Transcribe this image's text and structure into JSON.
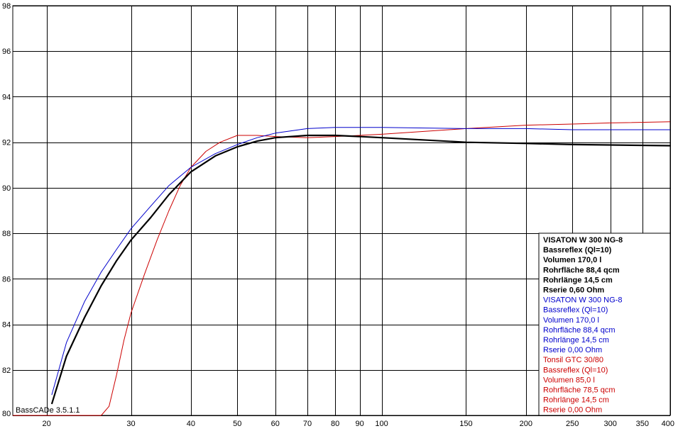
{
  "chart_data": {
    "type": "line",
    "title": "",
    "xlabel": "",
    "ylabel": "",
    "x_scale": "log",
    "xlim": [
      17,
      400
    ],
    "ylim": [
      80,
      98
    ],
    "grid": true,
    "x_ticks": [
      20,
      30,
      40,
      50,
      60,
      70,
      80,
      90,
      100,
      150,
      200,
      250,
      300,
      350,
      400
    ],
    "y_ticks": [
      80,
      82,
      84,
      86,
      88,
      90,
      92,
      94,
      96,
      98
    ],
    "watermark": "BassCADe 3.5.1.1",
    "series": [
      {
        "name": "VISATON W 300 NG-8",
        "color": "#000000",
        "bold": true,
        "x": [
          20.5,
          22,
          24,
          26,
          28,
          30,
          33,
          36,
          40,
          45,
          50,
          55,
          60,
          70,
          80,
          90,
          100,
          150,
          200,
          250,
          300,
          400
        ],
        "y": [
          80.5,
          82.6,
          84.3,
          85.7,
          86.8,
          87.7,
          88.7,
          89.7,
          90.7,
          91.4,
          91.8,
          92.05,
          92.2,
          92.3,
          92.3,
          92.25,
          92.2,
          92.0,
          91.95,
          91.9,
          91.88,
          91.85
        ]
      },
      {
        "name": "VISATON W 300 NG-8",
        "color": "#0000cc",
        "bold": false,
        "x": [
          20.5,
          22,
          24,
          26,
          28,
          30,
          33,
          36,
          40,
          45,
          50,
          55,
          60,
          70,
          80,
          90,
          100,
          150,
          200,
          250,
          300,
          400
        ],
        "y": [
          80.9,
          83.2,
          85.0,
          86.3,
          87.3,
          88.2,
          89.2,
          90.1,
          90.9,
          91.5,
          91.9,
          92.2,
          92.4,
          92.6,
          92.65,
          92.65,
          92.65,
          92.6,
          92.6,
          92.55,
          92.55,
          92.55
        ]
      },
      {
        "name": "Tonsil GTC 30/80",
        "color": "#cc0000",
        "bold": false,
        "x": [
          17,
          26,
          27,
          28,
          29,
          30,
          32,
          34,
          36,
          38,
          40,
          43,
          46,
          50,
          55,
          60,
          70,
          80,
          90,
          100,
          150,
          200,
          250,
          300,
          400
        ],
        "y": [
          80.0,
          80.0,
          80.4,
          81.8,
          83.3,
          84.5,
          86.2,
          87.7,
          89.0,
          90.1,
          90.9,
          91.6,
          92.0,
          92.3,
          92.3,
          92.25,
          92.2,
          92.25,
          92.3,
          92.35,
          92.6,
          92.75,
          92.8,
          92.85,
          92.9
        ]
      }
    ]
  },
  "legend": [
    {
      "text": "VISATON W 300 NG-8",
      "color": "#000000",
      "bold": true
    },
    {
      "text": "Bassreflex (Ql=10)",
      "color": "#000000",
      "bold": true
    },
    {
      "text": "Volumen 170,0 l",
      "color": "#000000",
      "bold": true
    },
    {
      "text": "Rohrfläche 88,4 qcm",
      "color": "#000000",
      "bold": true
    },
    {
      "text": "Rohrlänge 14,5 cm",
      "color": "#000000",
      "bold": true
    },
    {
      "text": "Rserie 0,60 Ohm",
      "color": "#000000",
      "bold": true
    },
    {
      "text": "VISATON W 300 NG-8",
      "color": "#0000cc",
      "bold": false
    },
    {
      "text": "Bassreflex (Ql=10)",
      "color": "#0000cc",
      "bold": false
    },
    {
      "text": "Volumen 170,0 l",
      "color": "#0000cc",
      "bold": false
    },
    {
      "text": "Rohrfläche 88,4 qcm",
      "color": "#0000cc",
      "bold": false
    },
    {
      "text": "Rohrlänge 14,5 cm",
      "color": "#0000cc",
      "bold": false
    },
    {
      "text": "Rserie 0,00 Ohm",
      "color": "#0000cc",
      "bold": false
    },
    {
      "text": "Tonsil GTC 30/80",
      "color": "#cc0000",
      "bold": false
    },
    {
      "text": "Bassreflex (Ql=10)",
      "color": "#cc0000",
      "bold": false
    },
    {
      "text": "Volumen 85,0 l",
      "color": "#cc0000",
      "bold": false
    },
    {
      "text": "Rohrfläche 78,5 qcm",
      "color": "#cc0000",
      "bold": false
    },
    {
      "text": "Rohrlänge 14,5 cm",
      "color": "#cc0000",
      "bold": false
    },
    {
      "text": "Rserie 0,00 Ohm",
      "color": "#cc0000",
      "bold": false
    }
  ]
}
